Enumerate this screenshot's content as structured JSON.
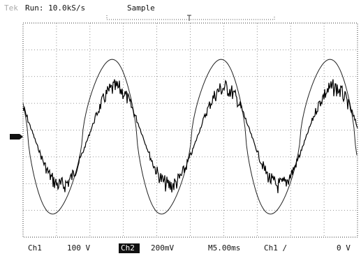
{
  "header": {
    "brand": "Tek",
    "status": "Run: 10.0kS/s",
    "mode": "Sample"
  },
  "footer": {
    "ch1_label": "Ch1",
    "ch1_scale": "100 V",
    "ch2_label": "Ch2",
    "ch2_scale": "200mV",
    "timebase": "M5.00ms",
    "trigger_source": "Ch1 ∕",
    "trigger_level": "0 V"
  }
}
